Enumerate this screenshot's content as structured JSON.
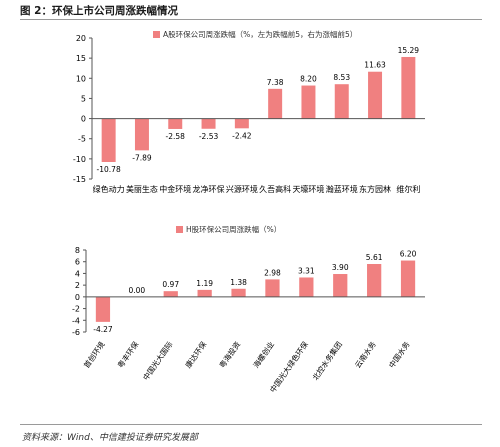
{
  "figure": {
    "title": "图 2：环保上市公司周涨跌幅情况",
    "source": "资料来源：Wind、中信建投证券研究发展部"
  },
  "colors": {
    "bar": "#f08080",
    "axis": "#555555",
    "text": "#000000"
  },
  "chart_data": [
    {
      "type": "bar",
      "series": [
        {
          "name": "A股环保公司周涨跌幅（%，左为跌幅前5，右为涨幅前5）"
        }
      ],
      "categories": [
        "绿色动力",
        "美丽生态",
        "中金环境",
        "龙净环保",
        "兴源环境",
        "久吾高科",
        "天壕环境",
        "瀚蓝环境",
        "东方园林",
        "维尔利"
      ],
      "values": [
        -10.78,
        -7.89,
        -2.58,
        -2.53,
        -2.42,
        7.38,
        8.2,
        8.53,
        11.63,
        15.29
      ],
      "value_labels": [
        "-10.78",
        "-7.89",
        "-2.58",
        "-2.53",
        "-2.42",
        "7.38",
        "8.20",
        "8.53",
        "11.63",
        "15.29"
      ],
      "ylim": [
        -15,
        20
      ],
      "yticks": [
        "-15",
        "-10",
        "-5",
        "0",
        "5",
        "10",
        "15",
        "20"
      ],
      "legend_position": "top",
      "grid": false
    },
    {
      "type": "bar",
      "series": [
        {
          "name": "H股环保公司周涨跌幅（%）"
        }
      ],
      "categories": [
        "首创环境",
        "粤丰环保",
        "中国光大国际",
        "康达环保",
        "粤海投资",
        "海螺创业",
        "中国光大绿色环保",
        "北控水务集团",
        "云南水务",
        "中国水务"
      ],
      "values": [
        -4.27,
        0.0,
        0.97,
        1.19,
        1.38,
        2.98,
        3.31,
        3.9,
        5.61,
        6.2
      ],
      "value_labels": [
        "-4.27",
        "0.00",
        "0.97",
        "1.19",
        "1.38",
        "2.98",
        "3.31",
        "3.90",
        "5.61",
        "6.20"
      ],
      "ylim": [
        -6,
        8
      ],
      "yticks": [
        "-6",
        "-4",
        "-2",
        "0",
        "2",
        "4",
        "6",
        "8"
      ],
      "legend_position": "top",
      "grid": false
    }
  ]
}
